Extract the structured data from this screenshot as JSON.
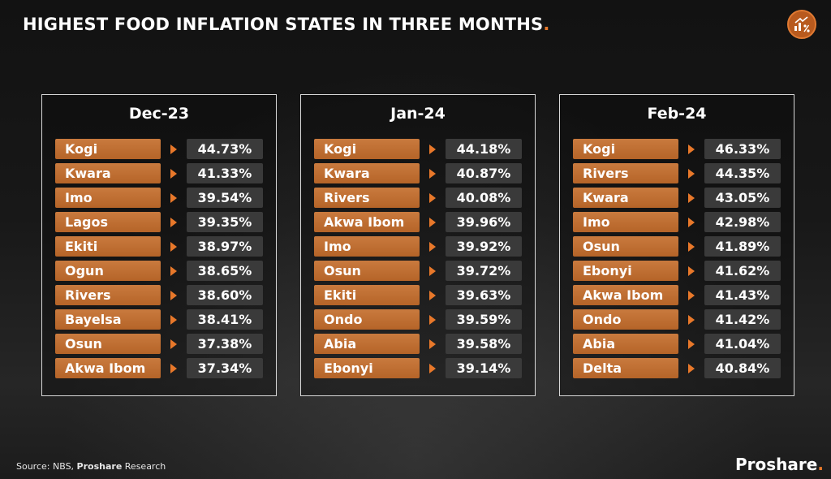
{
  "header": {
    "title": "HIGHEST FOOD INFLATION STATES IN THREE MONTHS",
    "title_dot": "."
  },
  "logo": {
    "icon": "chart-percent-icon"
  },
  "chart_data": {
    "type": "table",
    "accent_color": "#e8782a",
    "label_color": "#b56428",
    "value_color": "#3a3a3a",
    "panels": [
      {
        "title": "Dec-23",
        "rows": [
          {
            "state": "Kogi",
            "value": "44.73%"
          },
          {
            "state": "Kwara",
            "value": "41.33%"
          },
          {
            "state": "Imo",
            "value": "39.54%"
          },
          {
            "state": "Lagos",
            "value": "39.35%"
          },
          {
            "state": "Ekiti",
            "value": "38.97%"
          },
          {
            "state": "Ogun",
            "value": "38.65%"
          },
          {
            "state": "Rivers",
            "value": "38.60%"
          },
          {
            "state": "Bayelsa",
            "value": "38.41%"
          },
          {
            "state": "Osun",
            "value": "37.38%"
          },
          {
            "state": "Akwa Ibom",
            "value": "37.34%"
          }
        ]
      },
      {
        "title": "Jan-24",
        "rows": [
          {
            "state": "Kogi",
            "value": "44.18%"
          },
          {
            "state": "Kwara",
            "value": "40.87%"
          },
          {
            "state": "Rivers",
            "value": "40.08%"
          },
          {
            "state": "Akwa Ibom",
            "value": "39.96%"
          },
          {
            "state": "Imo",
            "value": "39.92%"
          },
          {
            "state": "Osun",
            "value": "39.72%"
          },
          {
            "state": "Ekiti",
            "value": "39.63%"
          },
          {
            "state": "Ondo",
            "value": "39.59%"
          },
          {
            "state": "Abia",
            "value": "39.58%"
          },
          {
            "state": "Ebonyi",
            "value": "39.14%"
          }
        ]
      },
      {
        "title": "Feb-24",
        "rows": [
          {
            "state": "Kogi",
            "value": "46.33%"
          },
          {
            "state": "Rivers",
            "value": "44.35%"
          },
          {
            "state": "Kwara",
            "value": "43.05%"
          },
          {
            "state": "Imo",
            "value": "42.98%"
          },
          {
            "state": "Osun",
            "value": "41.89%"
          },
          {
            "state": "Ebonyi",
            "value": "41.62%"
          },
          {
            "state": "Akwa Ibom",
            "value": "41.43%"
          },
          {
            "state": "Ondo",
            "value": "41.42%"
          },
          {
            "state": "Abia",
            "value": "41.04%"
          },
          {
            "state": "Delta",
            "value": "40.84%"
          }
        ]
      }
    ]
  },
  "footer": {
    "source_prefix": "Source: NBS, ",
    "source_bold": "Proshare",
    "source_suffix": " Research",
    "brand": "Proshare",
    "brand_dot": "."
  }
}
